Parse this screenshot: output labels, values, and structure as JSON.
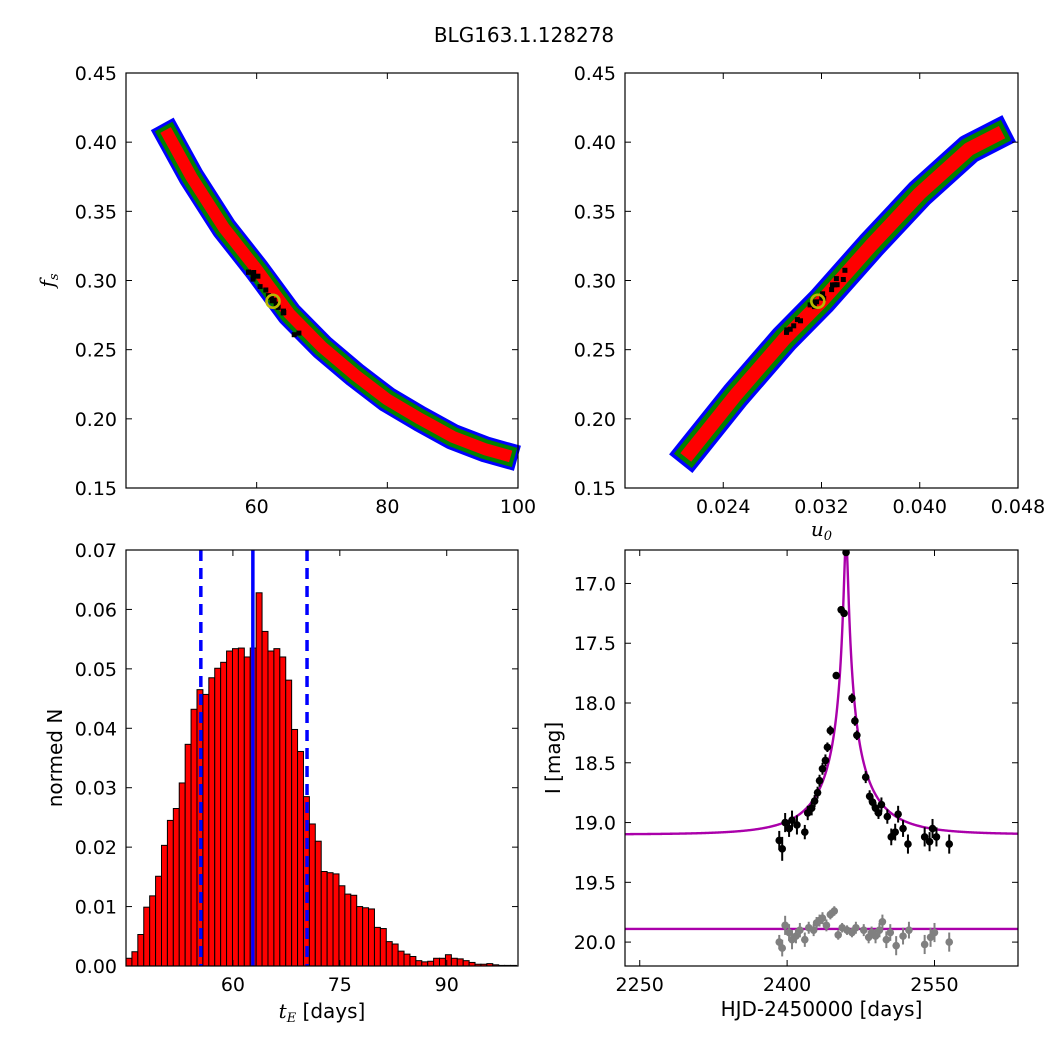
{
  "figure": {
    "title": "BLG163.1.128278"
  },
  "chart_data": [
    {
      "id": "fs-vs-tE",
      "type": "heatmap",
      "title": "",
      "xlabel": "",
      "ylabel_symbol": "f",
      "ylabel_sub": "s",
      "xlim": [
        40,
        100
      ],
      "ylim": [
        0.15,
        0.45
      ],
      "xticks": [
        60,
        80,
        100
      ],
      "yticks": [
        0.15,
        0.2,
        0.25,
        0.3,
        0.35,
        0.4,
        0.45
      ],
      "ytick_labels": [
        "0.15",
        "0.20",
        "0.25",
        "0.30",
        "0.35",
        "0.40",
        "0.45"
      ],
      "region_colors": {
        "outer": "#0000ff",
        "middle": "#008000",
        "inner": "#ff0000",
        "core": "#000000"
      },
      "ridge": [
        [
          46.5,
          0.405
        ],
        [
          50,
          0.375
        ],
        [
          55,
          0.338
        ],
        [
          60,
          0.308
        ],
        [
          65,
          0.276
        ],
        [
          70,
          0.252
        ],
        [
          75,
          0.232
        ],
        [
          80,
          0.214
        ],
        [
          85,
          0.2
        ],
        [
          90,
          0.187
        ],
        [
          95,
          0.178
        ],
        [
          98,
          0.174
        ]
      ],
      "best_fit": {
        "x": 62.5,
        "y": 0.285,
        "marker_color": "#b8b800"
      }
    },
    {
      "id": "fs-vs-u0",
      "type": "heatmap",
      "title": "",
      "xlabel_symbol": "u",
      "xlabel_sub": "0",
      "ylabel": "",
      "xlim": [
        0.016,
        0.048
      ],
      "ylim": [
        0.15,
        0.45
      ],
      "xticks": [
        0.024,
        0.032,
        0.04,
        0.048
      ],
      "xtick_labels": [
        "0.024",
        "0.032",
        "0.040",
        "0.048"
      ],
      "yticks": [
        0.15,
        0.2,
        0.25,
        0.3,
        0.35,
        0.4,
        0.45
      ],
      "ytick_labels": [
        "0.15",
        "0.20",
        "0.25",
        "0.30",
        "0.35",
        "0.40",
        "0.45"
      ],
      "region_colors": {
        "outer": "#0000ff",
        "middle": "#008000",
        "inner": "#ff0000",
        "core": "#000000"
      },
      "ridge": [
        [
          0.0213,
          0.176
        ],
        [
          0.025,
          0.217
        ],
        [
          0.029,
          0.258
        ],
        [
          0.032,
          0.285
        ],
        [
          0.036,
          0.325
        ],
        [
          0.04,
          0.363
        ],
        [
          0.044,
          0.395
        ],
        [
          0.0462,
          0.405
        ]
      ],
      "best_fit": {
        "x": 0.0317,
        "y": 0.285,
        "marker_color": "#b8b800"
      }
    },
    {
      "id": "tE-histogram",
      "type": "bar",
      "title": "",
      "xlabel_symbol": "t",
      "xlabel_sub": "E",
      "xlabel_suffix": " [days]",
      "ylabel": "normed N",
      "xlim": [
        45,
        100
      ],
      "ylim": [
        0,
        0.07
      ],
      "xticks": [
        60,
        75,
        90
      ],
      "yticks": [
        0.0,
        0.01,
        0.02,
        0.03,
        0.04,
        0.05,
        0.06,
        0.07
      ],
      "ytick_labels": [
        "0.00",
        "0.01",
        "0.02",
        "0.03",
        "0.04",
        "0.05",
        "0.06",
        "0.07"
      ],
      "bin_start": 45.0,
      "bin_width": 0.83,
      "values": [
        0.0013,
        0.0024,
        0.0053,
        0.0099,
        0.0118,
        0.0151,
        0.0203,
        0.0245,
        0.0265,
        0.0308,
        0.0373,
        0.0432,
        0.0465,
        0.0457,
        0.0485,
        0.0501,
        0.0511,
        0.053,
        0.0534,
        0.0535,
        0.052,
        0.0535,
        0.0628,
        0.0563,
        0.053,
        0.0534,
        0.052,
        0.0481,
        0.0398,
        0.0361,
        0.0285,
        0.0239,
        0.021,
        0.0159,
        0.0157,
        0.0155,
        0.0135,
        0.0121,
        0.0119,
        0.01,
        0.0098,
        0.0096,
        0.0065,
        0.0063,
        0.0041,
        0.0037,
        0.0025,
        0.002,
        0.0016,
        0.0009,
        0.0007,
        0.0008,
        0.0013,
        0.0013,
        0.0019,
        0.0013,
        0.0012,
        0.0009,
        0.0006,
        0.0003,
        0.0003,
        0.0004,
        0.0002,
        0.0001,
        0.0001,
        0.0001
      ],
      "bar_color": "#ff0000",
      "vlines": [
        {
          "x": 62.8,
          "style": "solid",
          "color": "#0000ff"
        },
        {
          "x": 55.5,
          "style": "dashed",
          "color": "#0000ff"
        },
        {
          "x": 70.4,
          "style": "dashed",
          "color": "#0000ff"
        }
      ]
    },
    {
      "id": "light-curve",
      "type": "scatter",
      "title": "",
      "xlabel": "HJD-2450000 [days]",
      "ylabel": "I [mag]",
      "xlim": [
        2235,
        2635
      ],
      "ylim": [
        20.2,
        16.72
      ],
      "xticks": [
        2250,
        2400,
        2550
      ],
      "yticks": [
        17.0,
        17.5,
        18.0,
        18.5,
        19.0,
        19.5,
        20.0
      ],
      "ytick_labels": [
        "17.0",
        "17.5",
        "18.0",
        "18.5",
        "19.0",
        "19.5",
        "20.0"
      ],
      "model": {
        "color": "#aa00aa",
        "t0": 2460,
        "u0": 0.0317,
        "tE": 62.8,
        "fs": 0.285,
        "baseline_mag": 19.1
      },
      "residual_model": {
        "color": "#aa00aa",
        "level": 19.89
      },
      "series": [
        {
          "name": "",
          "color": "#000000",
          "points": [
            {
              "x": 2392,
              "y": 19.15,
              "err": 0.08
            },
            {
              "x": 2395,
              "y": 19.22,
              "err": 0.1
            },
            {
              "x": 2398,
              "y": 19.0,
              "err": 0.08
            },
            {
              "x": 2402,
              "y": 19.05,
              "err": 0.07
            },
            {
              "x": 2405,
              "y": 18.98,
              "err": 0.08
            },
            {
              "x": 2410,
              "y": 19.02,
              "err": 0.08
            },
            {
              "x": 2418,
              "y": 19.08,
              "err": 0.06
            },
            {
              "x": 2421,
              "y": 18.92,
              "err": 0.06
            },
            {
              "x": 2425,
              "y": 18.88,
              "err": 0.06
            },
            {
              "x": 2428,
              "y": 18.82,
              "err": 0.05
            },
            {
              "x": 2431,
              "y": 18.75,
              "err": 0.05
            },
            {
              "x": 2433,
              "y": 18.65,
              "err": 0.05
            },
            {
              "x": 2436,
              "y": 18.55,
              "err": 0.05
            },
            {
              "x": 2439,
              "y": 18.48,
              "err": 0.05
            },
            {
              "x": 2441,
              "y": 18.37,
              "err": 0.04
            },
            {
              "x": 2444,
              "y": 18.23,
              "err": 0.04
            },
            {
              "x": 2450,
              "y": 17.77,
              "err": 0.03
            },
            {
              "x": 2455,
              "y": 17.22,
              "err": 0.03
            },
            {
              "x": 2458,
              "y": 17.25,
              "err": 0.03
            },
            {
              "x": 2460,
              "y": 16.74,
              "err": 0.03
            },
            {
              "x": 2466,
              "y": 17.96,
              "err": 0.04
            },
            {
              "x": 2469,
              "y": 18.15,
              "err": 0.04
            },
            {
              "x": 2471,
              "y": 18.27,
              "err": 0.04
            },
            {
              "x": 2480,
              "y": 18.62,
              "err": 0.05
            },
            {
              "x": 2484,
              "y": 18.78,
              "err": 0.05
            },
            {
              "x": 2487,
              "y": 18.83,
              "err": 0.05
            },
            {
              "x": 2490,
              "y": 18.88,
              "err": 0.05
            },
            {
              "x": 2493,
              "y": 18.92,
              "err": 0.05
            },
            {
              "x": 2496,
              "y": 18.85,
              "err": 0.06
            },
            {
              "x": 2502,
              "y": 18.95,
              "err": 0.06
            },
            {
              "x": 2506,
              "y": 19.12,
              "err": 0.07
            },
            {
              "x": 2510,
              "y": 19.08,
              "err": 0.07
            },
            {
              "x": 2513,
              "y": 18.93,
              "err": 0.07
            },
            {
              "x": 2518,
              "y": 19.05,
              "err": 0.07
            },
            {
              "x": 2523,
              "y": 19.18,
              "err": 0.08
            },
            {
              "x": 2540,
              "y": 19.12,
              "err": 0.08
            },
            {
              "x": 2545,
              "y": 19.16,
              "err": 0.08
            },
            {
              "x": 2548,
              "y": 19.05,
              "err": 0.08
            },
            {
              "x": 2552,
              "y": 19.12,
              "err": 0.08
            },
            {
              "x": 2565,
              "y": 19.18,
              "err": 0.08
            }
          ]
        },
        {
          "name": "",
          "color": "#808080",
          "points": [
            {
              "x": 2392,
              "y": 20.0,
              "err": 0.06
            },
            {
              "x": 2395,
              "y": 20.05,
              "err": 0.07
            },
            {
              "x": 2398,
              "y": 19.86,
              "err": 0.08
            },
            {
              "x": 2402,
              "y": 19.92,
              "err": 0.07
            },
            {
              "x": 2405,
              "y": 19.98,
              "err": 0.08
            },
            {
              "x": 2409,
              "y": 19.95,
              "err": 0.06
            },
            {
              "x": 2413,
              "y": 19.9,
              "err": 0.06
            },
            {
              "x": 2418,
              "y": 19.98,
              "err": 0.06
            },
            {
              "x": 2422,
              "y": 19.88,
              "err": 0.05
            },
            {
              "x": 2427,
              "y": 19.9,
              "err": 0.05
            },
            {
              "x": 2430,
              "y": 19.84,
              "err": 0.05
            },
            {
              "x": 2433,
              "y": 19.82,
              "err": 0.05
            },
            {
              "x": 2436,
              "y": 19.8,
              "err": 0.05
            },
            {
              "x": 2440,
              "y": 19.86,
              "err": 0.05
            },
            {
              "x": 2444,
              "y": 19.77,
              "err": 0.04
            },
            {
              "x": 2448,
              "y": 19.74,
              "err": 0.04
            },
            {
              "x": 2452,
              "y": 19.94,
              "err": 0.04
            },
            {
              "x": 2456,
              "y": 19.88,
              "err": 0.04
            },
            {
              "x": 2461,
              "y": 19.9,
              "err": 0.04
            },
            {
              "x": 2466,
              "y": 19.92,
              "err": 0.04
            },
            {
              "x": 2470,
              "y": 19.88,
              "err": 0.05
            },
            {
              "x": 2478,
              "y": 19.9,
              "err": 0.05
            },
            {
              "x": 2483,
              "y": 19.96,
              "err": 0.05
            },
            {
              "x": 2486,
              "y": 19.92,
              "err": 0.05
            },
            {
              "x": 2490,
              "y": 19.95,
              "err": 0.06
            },
            {
              "x": 2494,
              "y": 19.9,
              "err": 0.06
            },
            {
              "x": 2497,
              "y": 19.83,
              "err": 0.06
            },
            {
              "x": 2501,
              "y": 19.98,
              "err": 0.07
            },
            {
              "x": 2505,
              "y": 19.92,
              "err": 0.07
            },
            {
              "x": 2511,
              "y": 20.03,
              "err": 0.08
            },
            {
              "x": 2518,
              "y": 19.95,
              "err": 0.07
            },
            {
              "x": 2524,
              "y": 19.9,
              "err": 0.07
            },
            {
              "x": 2540,
              "y": 20.02,
              "err": 0.08
            },
            {
              "x": 2546,
              "y": 19.96,
              "err": 0.08
            },
            {
              "x": 2550,
              "y": 19.92,
              "err": 0.08
            },
            {
              "x": 2565,
              "y": 20.0,
              "err": 0.08
            }
          ]
        }
      ]
    }
  ]
}
